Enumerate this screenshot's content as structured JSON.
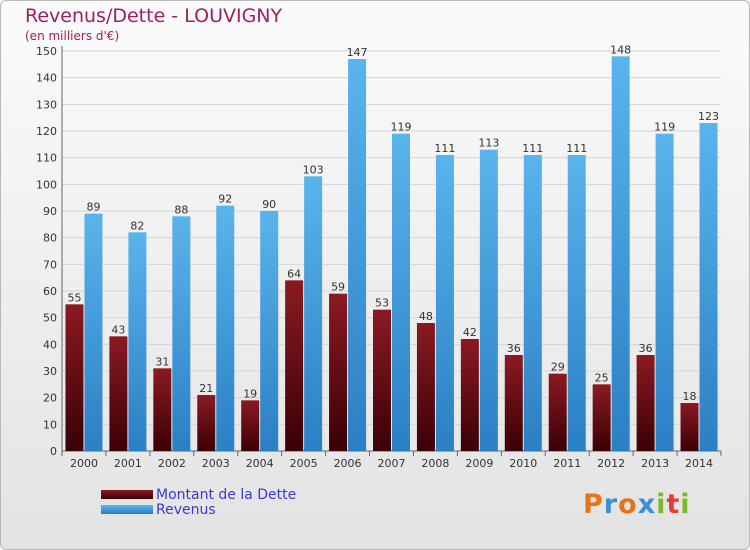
{
  "title": "Revenus/Dette - LOUVIGNY",
  "subtitle": "(en milliers d'€)",
  "logo": "Proxiti",
  "colors": {
    "dette_top": "#8b1a22",
    "dette_bottom": "#3a0006",
    "revenus_top": "#5ab4ec",
    "revenus_bottom": "#2b7fc4",
    "logo_letters": [
      "#e8741a",
      "#3a90d8",
      "#e8741a",
      "#3a90d8",
      "#7cb82a",
      "#e83a3a",
      "#7cb82a"
    ]
  },
  "chart_data": {
    "type": "bar",
    "categories": [
      "2000",
      "2001",
      "2002",
      "2003",
      "2004",
      "2005",
      "2006",
      "2007",
      "2008",
      "2009",
      "2010",
      "2011",
      "2012",
      "2013",
      "2014"
    ],
    "series": [
      {
        "name": "Montant de la Dette",
        "values": [
          55,
          43,
          31,
          21,
          19,
          64,
          59,
          53,
          48,
          42,
          36,
          29,
          25,
          36,
          18
        ]
      },
      {
        "name": "Revenus",
        "values": [
          89,
          82,
          88,
          92,
          90,
          103,
          147,
          119,
          111,
          113,
          111,
          111,
          148,
          119,
          123
        ]
      }
    ],
    "ylim": [
      0,
      150
    ],
    "yticks": [
      0,
      10,
      20,
      30,
      40,
      50,
      60,
      70,
      80,
      90,
      100,
      110,
      120,
      130,
      140,
      150
    ],
    "grid": true,
    "legend": "bottom-left"
  }
}
